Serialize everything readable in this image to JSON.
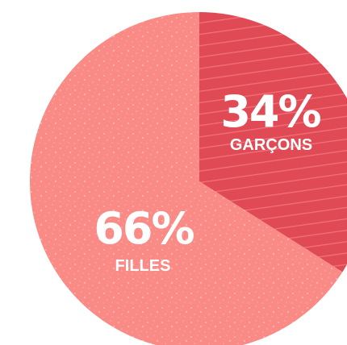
{
  "chart_data": {
    "type": "pie",
    "slices": [
      {
        "name": "GARÇONS",
        "value": 34,
        "label": "34%",
        "color": "#e04a55",
        "stripe_color": "#f2717a"
      },
      {
        "name": "FILLES",
        "value": 66,
        "label": "66%",
        "color": "#f98a86",
        "speckle_color": "#fbb0a8"
      }
    ],
    "start_angle_deg": 0,
    "direction": "clockwise",
    "legend": "none",
    "title": ""
  }
}
